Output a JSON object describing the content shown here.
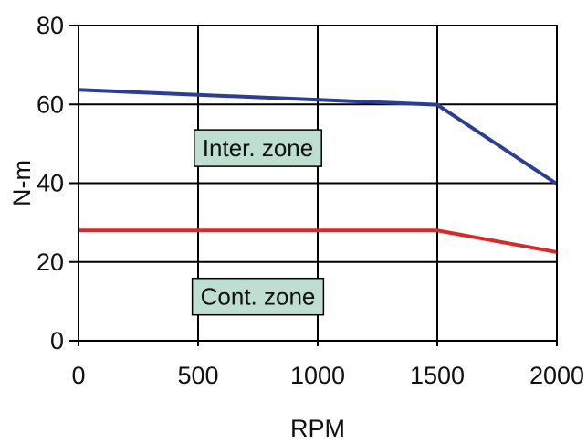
{
  "chart_data": {
    "type": "line",
    "title": "",
    "xlabel": "RPM",
    "ylabel": "N-m",
    "xlim": [
      0,
      2000
    ],
    "ylim": [
      0,
      80
    ],
    "x_ticks": [
      0,
      500,
      1000,
      1500,
      2000
    ],
    "y_ticks": [
      0,
      20,
      40,
      60,
      80
    ],
    "grid": true,
    "series": [
      {
        "color": "#2a3f8f",
        "points": [
          {
            "x": 0,
            "y": 63.7
          },
          {
            "x": 1500,
            "y": 59.9
          },
          {
            "x": 2000,
            "y": 39.8
          }
        ]
      },
      {
        "color": "#d62b2b",
        "points": [
          {
            "x": 0,
            "y": 28
          },
          {
            "x": 1500,
            "y": 28
          },
          {
            "x": 2000,
            "y": 22.5
          }
        ]
      }
    ],
    "annotations": [
      {
        "text": "Inter. zone",
        "x": 750,
        "y": 48.9,
        "fill": "#bfded2"
      },
      {
        "text": "Cont. zone",
        "x": 750,
        "y": 11.2,
        "fill": "#bfded2"
      }
    ]
  }
}
